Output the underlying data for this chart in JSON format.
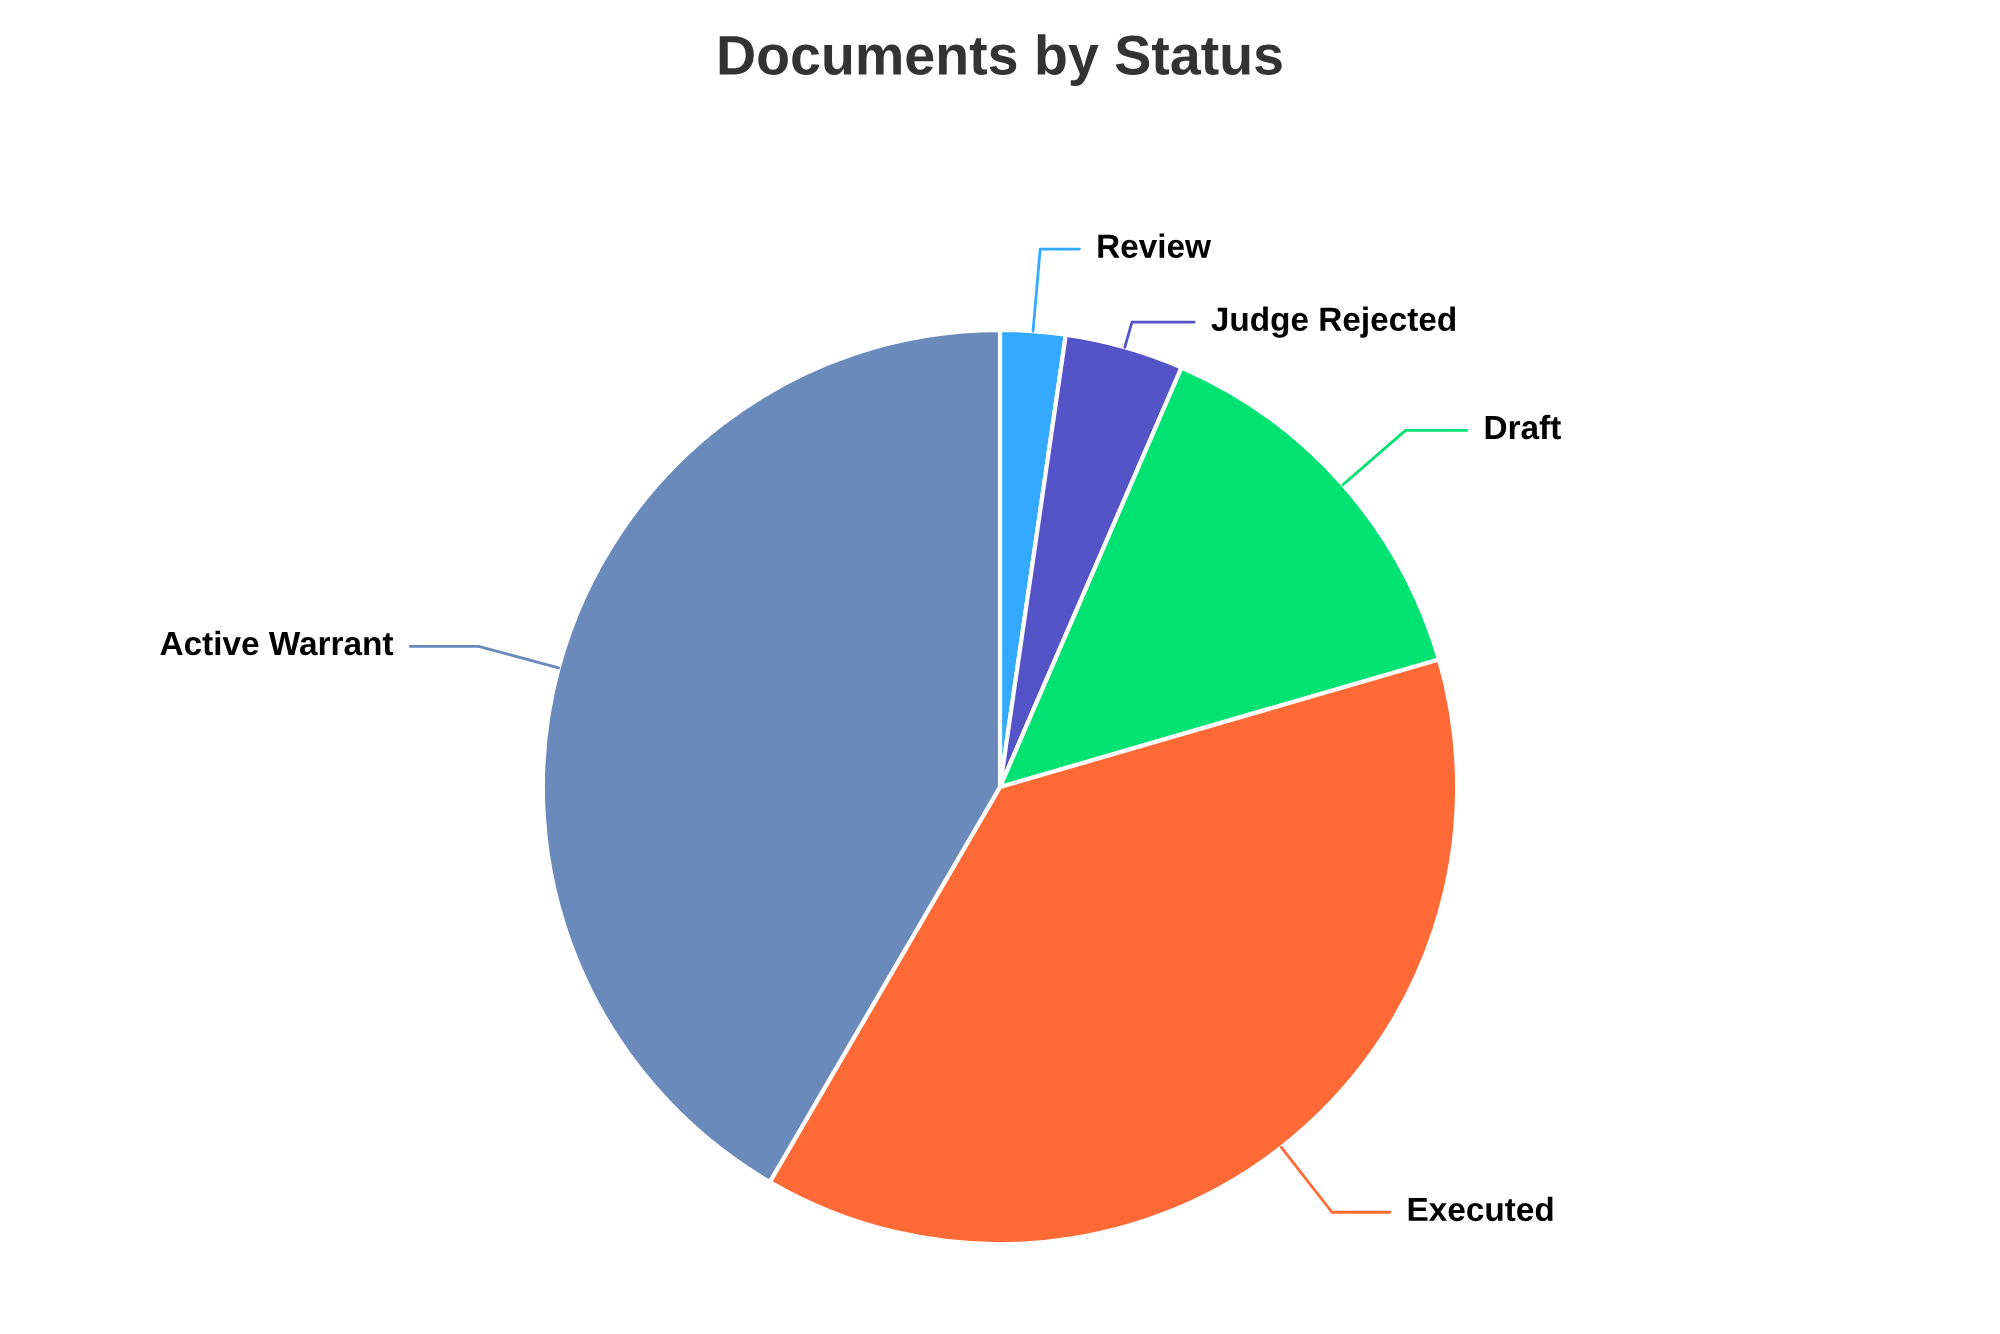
{
  "chart_data": {
    "type": "pie",
    "title": "Documents by Status",
    "categories": [
      "Review",
      "Judge Rejected",
      "Draft",
      "Executed",
      "Active Warrant"
    ],
    "values": [
      2.3,
      4.2,
      14,
      37.9,
      41.6
    ],
    "colors": [
      "#33aaff",
      "#5454c8",
      "#00e272",
      "#fe6a35",
      "#6b8abc"
    ]
  }
}
